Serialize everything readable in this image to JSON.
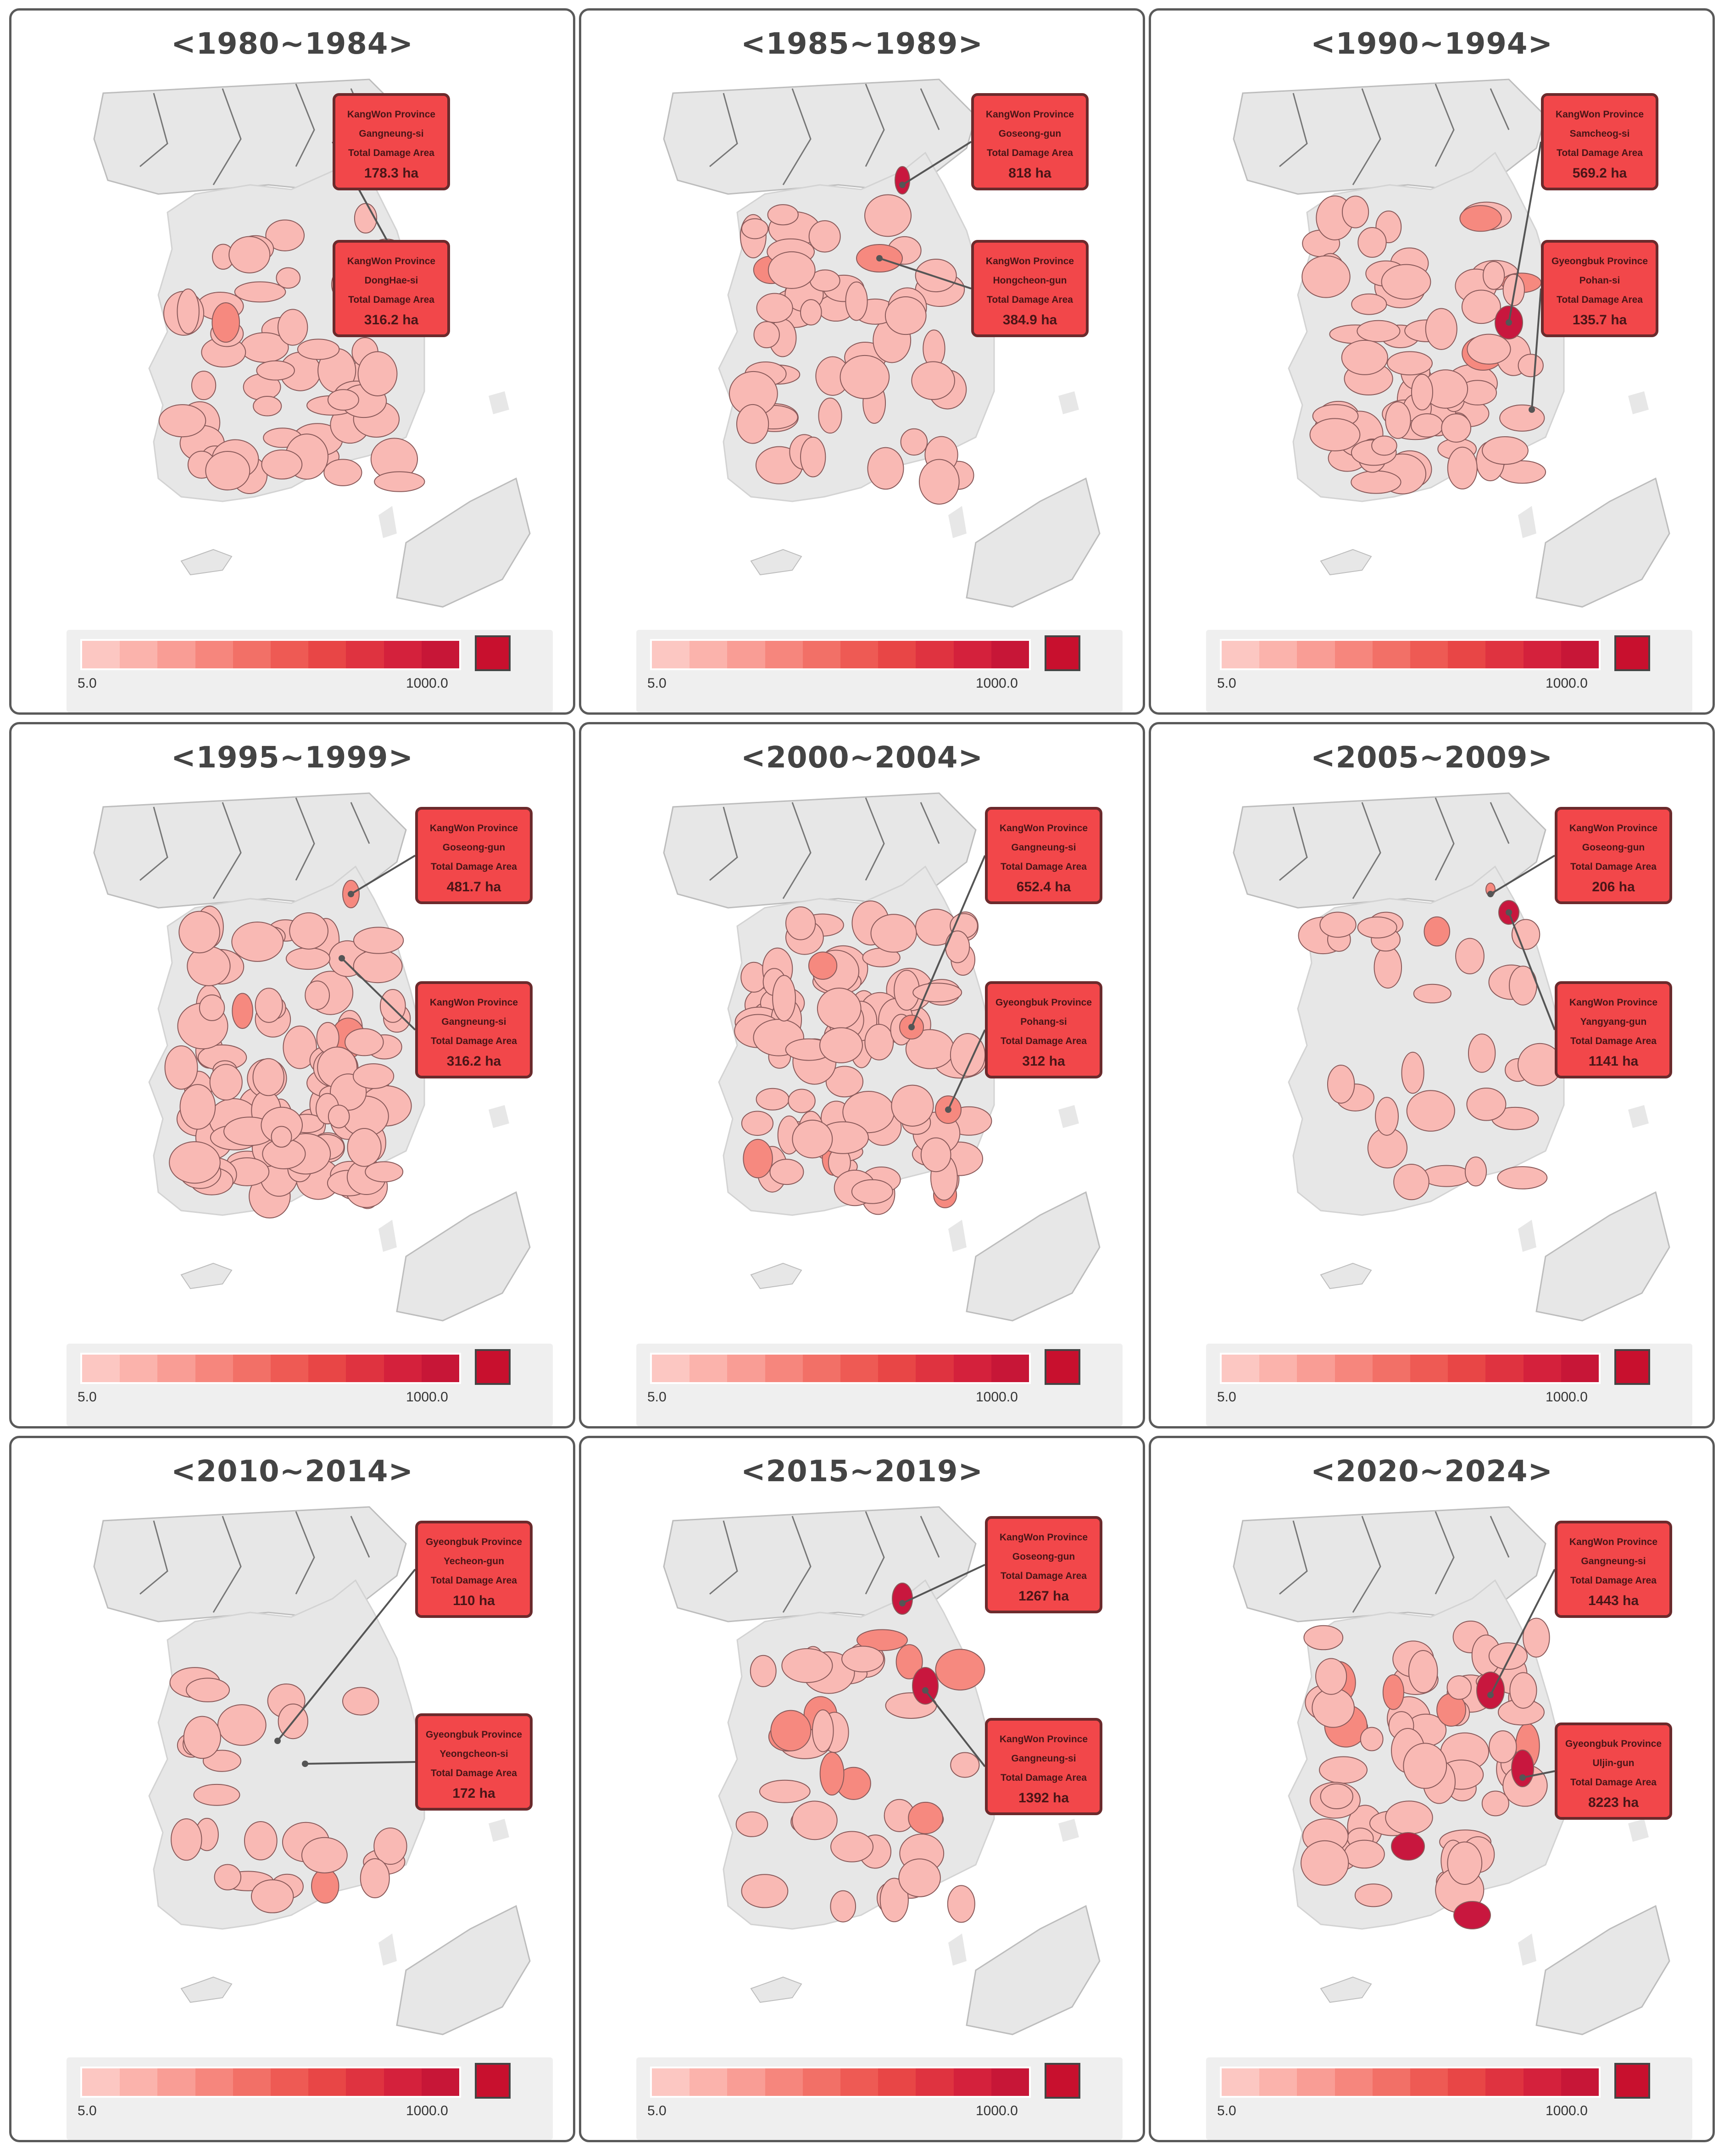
{
  "legend": {
    "min_label": "5.0",
    "max_label": "1000.0",
    "colors": [
      "#fcc7c2",
      "#fbb3ac",
      "#f99d95",
      "#f6867d",
      "#f27067",
      "#ee5a54",
      "#e84646",
      "#df3340",
      "#d4213c",
      "#c71637"
    ],
    "max_color": "#c8102e"
  },
  "colors": {
    "region_low": "#f9b9b4",
    "region_mid": "#f6897f",
    "region_high": "#c8173e",
    "land": "#e7e7e7",
    "callout_fill": "#f2474a"
  },
  "panels": [
    {
      "title": "<1980~1984>",
      "callouts": [
        {
          "province": "KangWon Province",
          "district": "Gangneung-si",
          "label": "Total Damage Area",
          "value": "178.3 ha"
        },
        {
          "province": "KangWon Province",
          "district": "DongHae-si",
          "label": "Total Damage Area",
          "value": "316.2 ha"
        }
      ]
    },
    {
      "title": "<1985~1989>",
      "callouts": [
        {
          "province": "KangWon Province",
          "district": "Goseong-gun",
          "label": "Total Damage Area",
          "value": "818 ha"
        },
        {
          "province": "KangWon Province",
          "district": "Hongcheon-gun",
          "label": "Total Damage Area",
          "value": "384.9 ha"
        }
      ]
    },
    {
      "title": "<1990~1994>",
      "callouts": [
        {
          "province": "KangWon Province",
          "district": "Samcheog-si",
          "label": "Total Damage Area",
          "value": "569.2 ha"
        },
        {
          "province": "Gyeongbuk Province",
          "district": "Pohan-si",
          "label": "Total Damage Area",
          "value": "135.7 ha"
        }
      ]
    },
    {
      "title": "<1995~1999>",
      "callouts": [
        {
          "province": "KangWon Province",
          "district": "Goseong-gun",
          "label": "Total Damage Area",
          "value": "481.7 ha"
        },
        {
          "province": "KangWon Province",
          "district": "Gangneung-si",
          "label": "Total Damage Area",
          "value": "316.2 ha"
        }
      ]
    },
    {
      "title": "<2000~2004>",
      "callouts": [
        {
          "province": "KangWon Province",
          "district": "Gangneung-si",
          "label": "Total Damage Area",
          "value": "652.4 ha"
        },
        {
          "province": "Gyeongbuk Province",
          "district": "Pohang-si",
          "label": "Total Damage Area",
          "value": "312 ha"
        }
      ]
    },
    {
      "title": "<2005~2009>",
      "callouts": [
        {
          "province": "KangWon Province",
          "district": "Goseong-gun",
          "label": "Total Damage Area",
          "value": "206 ha"
        },
        {
          "province": "KangWon Province",
          "district": "Yangyang-gun",
          "label": "Total Damage Area",
          "value": "1141 ha"
        }
      ]
    },
    {
      "title": "<2010~2014>",
      "callouts": [
        {
          "province": "Gyeongbuk Province",
          "district": "Yecheon-gun",
          "label": "Total Damage Area",
          "value": "110 ha"
        },
        {
          "province": "Gyeongbuk Province",
          "district": "Yeongcheon-si",
          "label": "Total Damage Area",
          "value": "172 ha"
        }
      ]
    },
    {
      "title": "<2015~2019>",
      "callouts": [
        {
          "province": "KangWon Province",
          "district": "Goseong-gun",
          "label": "Total Damage Area",
          "value": "1267 ha"
        },
        {
          "province": "KangWon Province",
          "district": "Gangneung-si",
          "label": "Total Damage Area",
          "value": "1392 ha"
        }
      ]
    },
    {
      "title": "<2020~2024>",
      "callouts": [
        {
          "province": "KangWon Province",
          "district": "Gangneung-si",
          "label": "Total Damage Area",
          "value": "1443 ha"
        },
        {
          "province": "Gyeongbuk Province",
          "district": "Uljin-gun",
          "label": "Total Damage Area",
          "value": "8223 ha"
        }
      ]
    }
  ]
}
